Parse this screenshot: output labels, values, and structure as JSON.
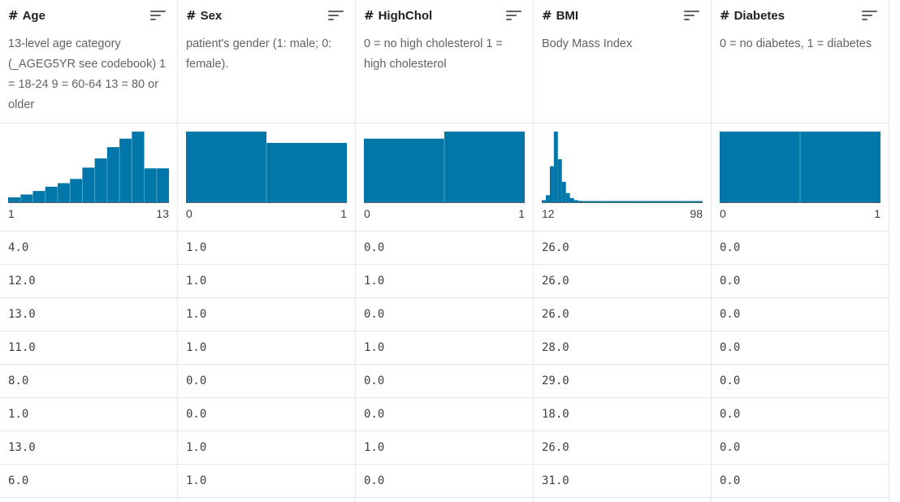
{
  "columns": [
    {
      "name": "Age",
      "type_icon": "hash-icon",
      "description": "13-level age category (_AGEG5YR see codebook) 1 = 18-24 9 = 60-64 13 = 80 or older",
      "range_min": "1",
      "range_max": "13",
      "histogram": [
        0.07,
        0.11,
        0.16,
        0.22,
        0.27,
        0.33,
        0.49,
        0.62,
        0.78,
        0.9,
        1.0,
        0.48,
        0.48
      ],
      "values": [
        "4.0",
        "12.0",
        "13.0",
        "11.0",
        "8.0",
        "1.0",
        "13.0",
        "6.0"
      ]
    },
    {
      "name": "Sex",
      "type_icon": "hash-icon",
      "description": "patient's gender (1: male; 0: female).",
      "range_min": "0",
      "range_max": "1",
      "histogram": [
        1.0,
        0.84
      ],
      "values": [
        "1.0",
        "1.0",
        "1.0",
        "1.0",
        "0.0",
        "0.0",
        "1.0",
        "1.0"
      ]
    },
    {
      "name": "HighChol",
      "type_icon": "hash-icon",
      "description": "0 = no high cholesterol 1 = high cholesterol",
      "range_min": "0",
      "range_max": "1",
      "histogram": [
        0.9,
        1.0
      ],
      "values": [
        "0.0",
        "1.0",
        "0.0",
        "1.0",
        "0.0",
        "0.0",
        "1.0",
        "0.0"
      ]
    },
    {
      "name": "BMI",
      "type_icon": "hash-icon",
      "description": "Body Mass Index",
      "range_min": "12",
      "range_max": "98",
      "histogram": [
        0.03,
        0.1,
        0.51,
        1.0,
        0.61,
        0.29,
        0.13,
        0.06,
        0.03,
        0.02,
        0.01,
        0.01,
        0.01,
        0.005,
        0.005,
        0.005,
        0.005,
        0.005,
        0.005,
        0.005,
        0.005,
        0.005,
        0.005,
        0.005,
        0.005,
        0.005,
        0.005,
        0.005,
        0.005,
        0.005,
        0.005,
        0.005,
        0.005,
        0.005,
        0.005,
        0.005,
        0.005,
        0.005,
        0.005,
        0.005
      ],
      "values": [
        "26.0",
        "26.0",
        "26.0",
        "28.0",
        "29.0",
        "18.0",
        "26.0",
        "31.0"
      ]
    },
    {
      "name": "Diabetes",
      "type_icon": "hash-icon",
      "description": "0 = no diabetes, 1 = diabetes",
      "range_min": "0",
      "range_max": "1",
      "histogram": [
        1.0,
        1.0
      ],
      "values": [
        "0.0",
        "0.0",
        "0.0",
        "0.0",
        "0.0",
        "0.0",
        "0.0",
        "0.0"
      ]
    }
  ],
  "colors": {
    "bar": "#0077a8",
    "bar_divider": "#4fa3c6",
    "axis": "#5f6368"
  },
  "sort_icon": "sort-lines-icon"
}
